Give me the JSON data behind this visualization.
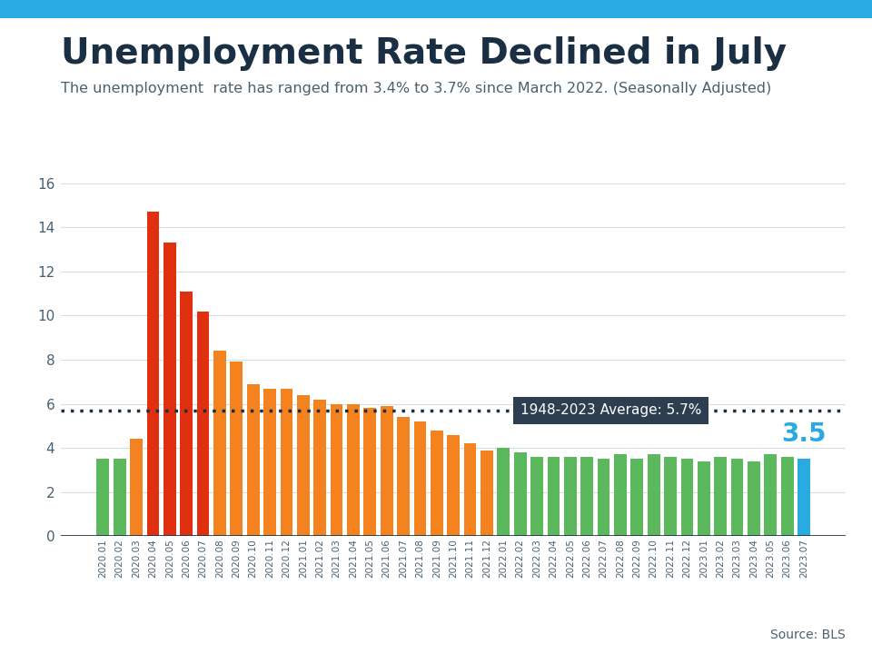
{
  "title": "Unemployment Rate Declined in July",
  "subtitle": "The unemployment  rate has ranged from 3.4% to 3.7% since March 2022. (Seasonally Adjusted)",
  "source": "Source: BLS",
  "average_label": "1948-2023 Average: 5.7%",
  "average_value": 5.7,
  "last_value": 3.5,
  "last_value_label": "3.5",
  "background_color": "#ffffff",
  "categories": [
    "2020.01",
    "2020.02",
    "2020.03",
    "2020.04",
    "2020.05",
    "2020.06",
    "2020.07",
    "2020.08",
    "2020.09",
    "2020.10",
    "2020.11",
    "2020.12",
    "2021.01",
    "2021.02",
    "2021.03",
    "2021.04",
    "2021.05",
    "2021.06",
    "2021.07",
    "2021.08",
    "2021.09",
    "2021.10",
    "2021.11",
    "2021.12",
    "2022.01",
    "2022.02",
    "2022.03",
    "2022.04",
    "2022.05",
    "2022.06",
    "2022.07",
    "2022.08",
    "2022.09",
    "2022.10",
    "2022.11",
    "2022.12",
    "2023.01",
    "2023.02",
    "2023.03",
    "2023.04",
    "2023.05",
    "2023.06",
    "2023.07"
  ],
  "values": [
    3.5,
    3.5,
    4.4,
    14.7,
    13.3,
    11.1,
    10.2,
    8.4,
    7.9,
    6.9,
    6.7,
    6.7,
    6.4,
    6.2,
    6.0,
    6.0,
    5.8,
    5.9,
    5.4,
    5.2,
    4.8,
    4.6,
    4.2,
    3.9,
    4.0,
    3.8,
    3.6,
    3.6,
    3.6,
    3.6,
    3.5,
    3.7,
    3.5,
    3.7,
    3.6,
    3.5,
    3.4,
    3.6,
    3.5,
    3.4,
    3.7,
    3.6,
    3.5
  ],
  "bar_colors": [
    "#5cb85c",
    "#5cb85c",
    "#f4821e",
    "#e03010",
    "#e03010",
    "#e03010",
    "#e03010",
    "#f4821e",
    "#f4821e",
    "#f4821e",
    "#f4821e",
    "#f4821e",
    "#f4821e",
    "#f4821e",
    "#f4821e",
    "#f4821e",
    "#f4821e",
    "#f4821e",
    "#f4821e",
    "#f4821e",
    "#f4821e",
    "#f4821e",
    "#f4821e",
    "#f4821e",
    "#5cb85c",
    "#5cb85c",
    "#5cb85c",
    "#5cb85c",
    "#5cb85c",
    "#5cb85c",
    "#5cb85c",
    "#5cb85c",
    "#5cb85c",
    "#5cb85c",
    "#5cb85c",
    "#5cb85c",
    "#5cb85c",
    "#5cb85c",
    "#5cb85c",
    "#5cb85c",
    "#5cb85c",
    "#5cb85c",
    "#29abe2"
  ],
  "ylim": [
    0,
    16
  ],
  "yticks": [
    0,
    2,
    4,
    6,
    8,
    10,
    12,
    14,
    16
  ],
  "header_bar_color": "#29abe2",
  "title_color": "#1a2e44",
  "subtitle_color": "#4a6070",
  "grid_color": "#d5dde5",
  "annotation_box_color": "#2c3e50",
  "annotation_text_color": "#ffffff",
  "last_value_color": "#29abe2",
  "dotted_line_color": "#1a2e44",
  "axis_color": "#1a2e44",
  "tick_label_color": "#4a6070"
}
